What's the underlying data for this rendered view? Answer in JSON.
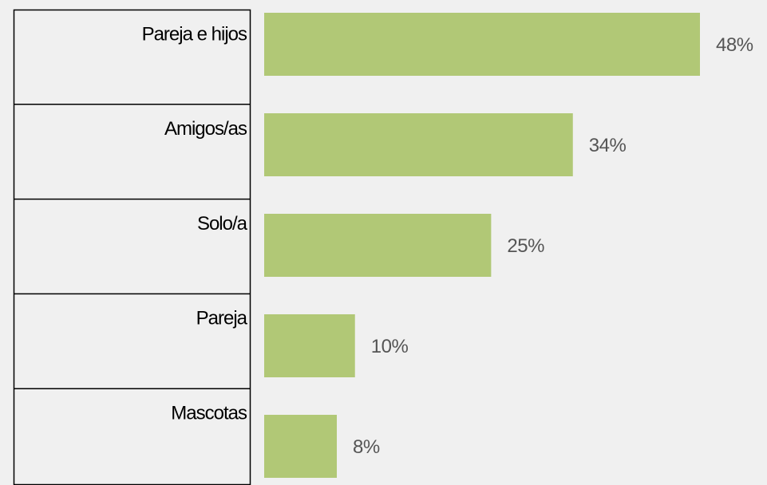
{
  "chart_data": {
    "type": "bar",
    "orientation": "horizontal",
    "categories": [
      "Pareja e hijos",
      "Amigos/as",
      "Solo/a",
      "Pareja",
      "Mascotas"
    ],
    "values": [
      48,
      34,
      25,
      10,
      8
    ],
    "value_labels": [
      "48%",
      "34%",
      "25%",
      "10%",
      "8%"
    ],
    "color": "#b1c876"
  }
}
